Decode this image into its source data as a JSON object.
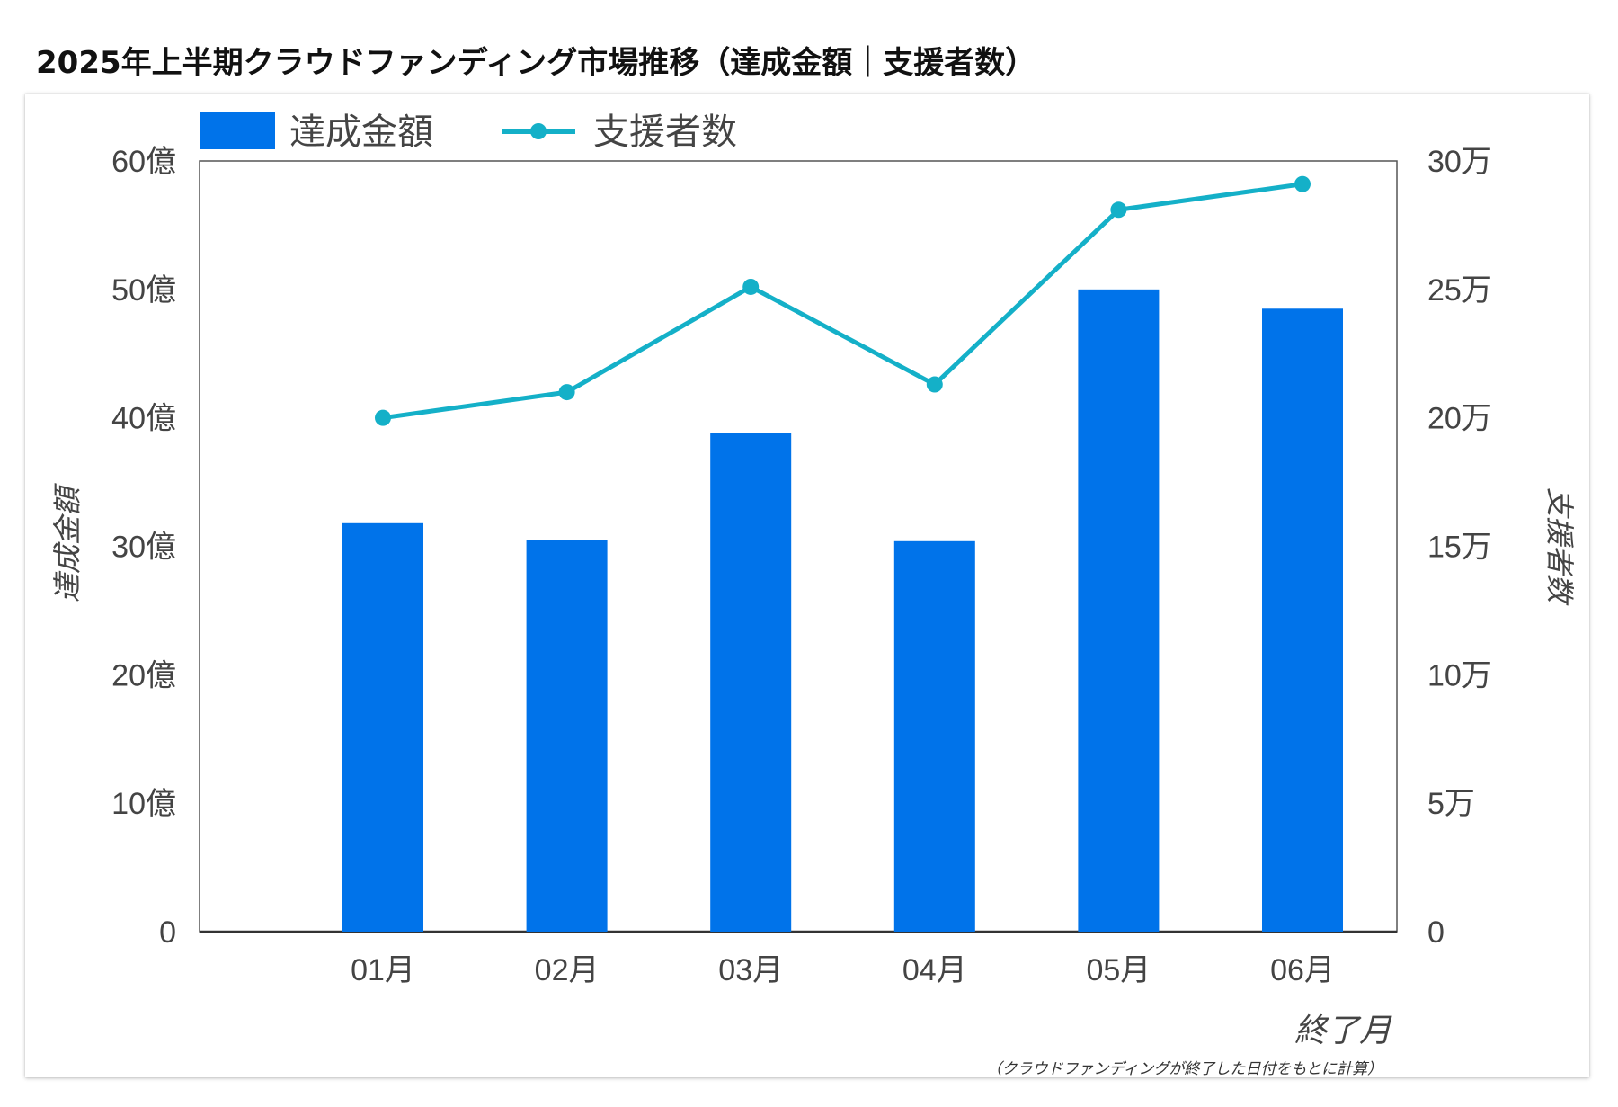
{
  "page_title": "2025年上半期クラウドファンディング市場推移（達成金額｜支援者数）",
  "colors": {
    "bar": "#0073ea",
    "line": "#14b0c8",
    "axis": "#333333",
    "text": "#444444"
  },
  "chart_data": {
    "type": "bar",
    "categories": [
      "01月",
      "02月",
      "03月",
      "04月",
      "05月",
      "06月"
    ],
    "series": [
      {
        "name": "達成金額",
        "type": "bar",
        "axis": "left",
        "values": [
          31.8,
          30.5,
          38.8,
          30.4,
          50.0,
          48.5
        ]
      },
      {
        "name": "支援者数",
        "type": "line",
        "axis": "right",
        "values": [
          200000,
          210000,
          251000,
          213000,
          281000,
          291000
        ]
      }
    ],
    "y_left": {
      "label": "達成金額",
      "ylim": [
        0,
        60
      ],
      "ticks": [
        "0",
        "10億",
        "20億",
        "30億",
        "40億",
        "50億",
        "60億"
      ]
    },
    "y_right": {
      "label": "支援者数",
      "ylim": [
        0,
        300000
      ],
      "ticks": [
        "0",
        "5万",
        "10万",
        "15万",
        "20万",
        "25万",
        "30万"
      ]
    },
    "xlabel": "終了月",
    "note": "（クラウドファンディングが終了した日付をもとに計算）",
    "legend": {
      "position": "top-left"
    },
    "grid": false
  }
}
